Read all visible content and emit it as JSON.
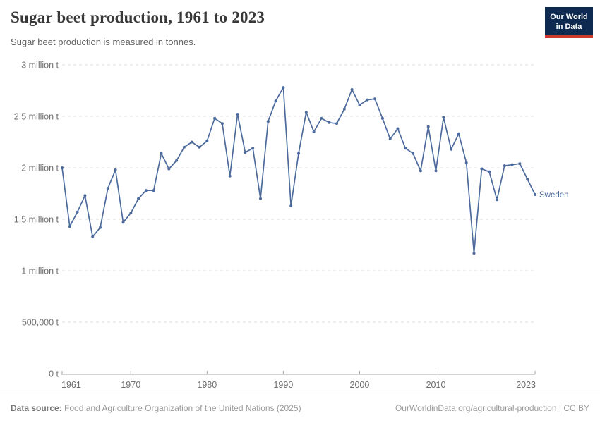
{
  "header": {
    "title": "Sugar beet production, 1961 to 2023",
    "subtitle": "Sugar beet production is measured in tonnes.",
    "logo": {
      "line1": "Our World",
      "line2": "in Data"
    },
    "logo_colors": {
      "background": "#0e2a50",
      "underline": "#cc3a30"
    }
  },
  "chart_data": {
    "type": "line",
    "title": "Sugar beet production, 1961 to 2023",
    "unit": "tonnes",
    "entity": "Sweden",
    "xlabel": "",
    "ylabel": "",
    "ylim": [
      0,
      3000000
    ],
    "grid": "horizontal-dashed",
    "legend": "end-of-line-label",
    "line_color": "#4C6A9C",
    "x": [
      1961,
      1962,
      1963,
      1964,
      1965,
      1966,
      1967,
      1968,
      1969,
      1970,
      1971,
      1972,
      1973,
      1974,
      1975,
      1976,
      1977,
      1978,
      1979,
      1980,
      1981,
      1982,
      1983,
      1984,
      1985,
      1986,
      1987,
      1988,
      1989,
      1990,
      1991,
      1992,
      1993,
      1994,
      1995,
      1996,
      1997,
      1998,
      1999,
      2000,
      2001,
      2002,
      2003,
      2004,
      2005,
      2006,
      2007,
      2008,
      2009,
      2010,
      2011,
      2012,
      2013,
      2014,
      2015,
      2016,
      2017,
      2018,
      2019,
      2020,
      2021,
      2022,
      2023
    ],
    "series": [
      {
        "name": "Sweden",
        "color": "#4C6A9C",
        "values": [
          2000000,
          1430000,
          1570000,
          1730000,
          1330000,
          1420000,
          1800000,
          1980000,
          1470000,
          1560000,
          1700000,
          1780000,
          1780000,
          2140000,
          1990000,
          2070000,
          2200000,
          2250000,
          2200000,
          2260000,
          2480000,
          2430000,
          1920000,
          2520000,
          2150000,
          2190000,
          1700000,
          2450000,
          2650000,
          2780000,
          1630000,
          2140000,
          2540000,
          2350000,
          2480000,
          2440000,
          2430000,
          2570000,
          2760000,
          2610000,
          2660000,
          2670000,
          2480000,
          2280000,
          2380000,
          2190000,
          2140000,
          1970000,
          2400000,
          1970000,
          2490000,
          2180000,
          2330000,
          2050000,
          1170000,
          1990000,
          1960000,
          1690000,
          2020000,
          2030000,
          2040000,
          1890000,
          1740000
        ]
      }
    ],
    "yticks": [
      {
        "value": 0,
        "label": "0 t"
      },
      {
        "value": 500000,
        "label": "500,000 t"
      },
      {
        "value": 1000000,
        "label": "1 million t"
      },
      {
        "value": 1500000,
        "label": "1.5 million t"
      },
      {
        "value": 2000000,
        "label": "2 million t"
      },
      {
        "value": 2500000,
        "label": "2.5 million t"
      },
      {
        "value": 3000000,
        "label": "3 million t"
      }
    ],
    "xticks": [
      {
        "value": 1961,
        "label": "1961"
      },
      {
        "value": 1970,
        "label": "1970"
      },
      {
        "value": 1980,
        "label": "1980"
      },
      {
        "value": 1990,
        "label": "1990"
      },
      {
        "value": 2000,
        "label": "2000"
      },
      {
        "value": 2010,
        "label": "2010"
      },
      {
        "value": 2023,
        "label": "2023"
      }
    ]
  },
  "footer": {
    "source_label": "Data source:",
    "source_text": " Food and Agriculture Organization of the United Nations (2025)",
    "url": "OurWorldinData.org/agricultural-production",
    "license": " | CC BY"
  }
}
